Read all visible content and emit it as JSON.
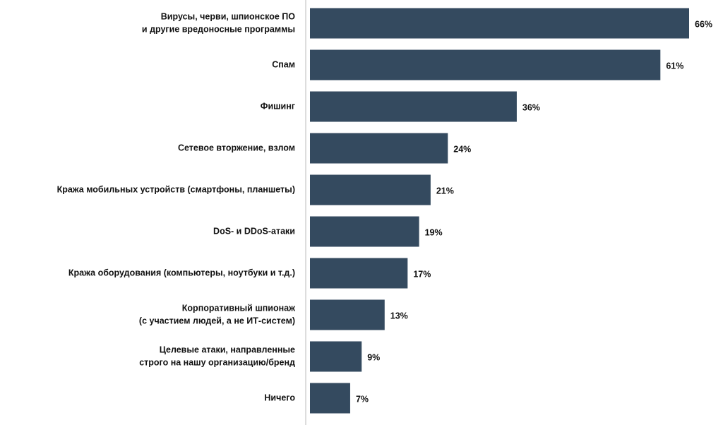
{
  "chart_data": {
    "type": "bar",
    "orientation": "horizontal",
    "color": "#344a5f",
    "categories": [
      [
        "Вирусы, черви, шпионское ПО",
        "и другие вредоносные программы"
      ],
      [
        "Спам"
      ],
      [
        "Фишинг"
      ],
      [
        "Сетевое вторжение, взлом"
      ],
      [
        "Кража мобильных устройств (смартфоны, планшеты)"
      ],
      [
        "DoS- и DDoS-атаки"
      ],
      [
        "Кража оборудования (компьютеры, ноутбуки и т.д.)"
      ],
      [
        "Корпоративный шпионаж",
        "(с участием людей, а не ИТ-систем)"
      ],
      [
        "Целевые атаки, направленные",
        "строго на нашу организацию/бренд"
      ],
      [
        "Ничего"
      ]
    ],
    "values": [
      66,
      61,
      36,
      24,
      21,
      19,
      17,
      13,
      9,
      7
    ],
    "value_labels": [
      "66%",
      "61%",
      "36%",
      "24%",
      "21%",
      "19%",
      "17%",
      "13%",
      "9%",
      "7%"
    ]
  }
}
